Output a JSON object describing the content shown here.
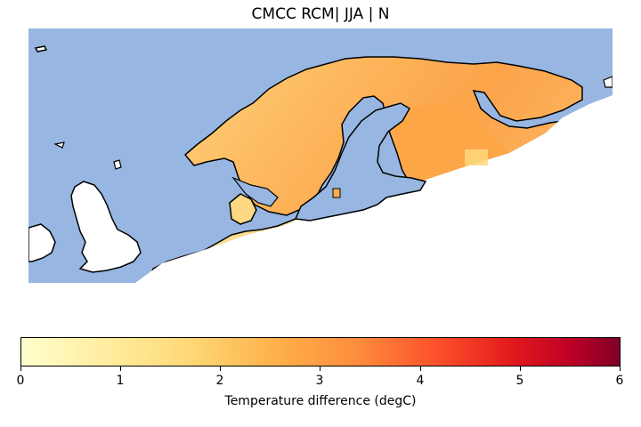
{
  "title": "CMCC RCM| JJA | N",
  "colorbar": {
    "label": "Temperature difference (degC)",
    "ticks": [
      "0",
      "1",
      "2",
      "3",
      "4",
      "5",
      "6"
    ],
    "range": [
      0,
      6
    ],
    "colormap": "YlOrRd"
  },
  "map": {
    "region": "Northern Europe",
    "ocean_color": "#97b6e1",
    "land_outside_domain_color": "#ffffff",
    "coastline_color": "#000000"
  }
}
